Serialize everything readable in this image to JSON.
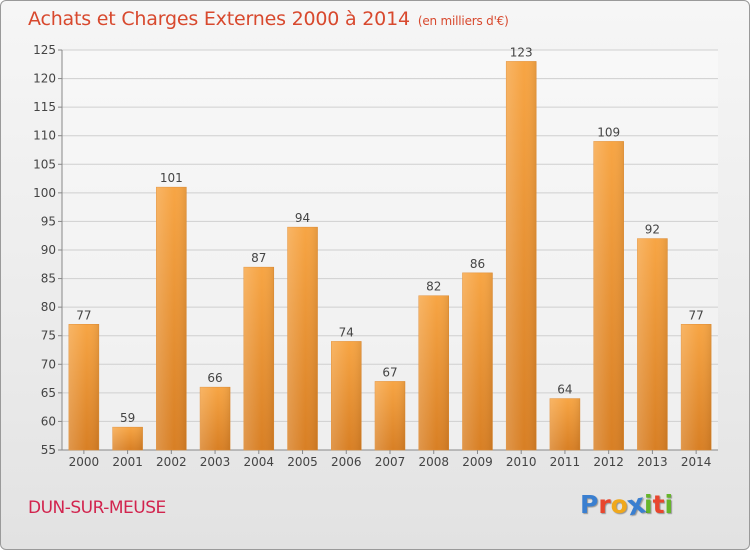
{
  "title": "Achats et Charges Externes 2000 à 2014",
  "title_unit": "(en milliers d'€)",
  "location": "DUN-SUR-MEUSE",
  "logo": {
    "text": "Proxiti",
    "letters": [
      "P",
      "r",
      "o",
      "x",
      "i",
      "t",
      "i"
    ],
    "colors": [
      "#3a7fd0",
      "#e8462e",
      "#f0a81c",
      "#3a7fd0",
      "#66b52b",
      "#e8462e",
      "#66b52b"
    ]
  },
  "colors": {
    "bar": "#f39a3a",
    "bar_dark": "#d87f24",
    "title": "#d8492e",
    "location": "#d2244e"
  },
  "chart_data": {
    "type": "bar",
    "categories": [
      "2000",
      "2001",
      "2002",
      "2003",
      "2004",
      "2005",
      "2006",
      "2007",
      "2008",
      "2009",
      "2010",
      "2011",
      "2012",
      "2013",
      "2014"
    ],
    "values": [
      77,
      59,
      101,
      66,
      87,
      94,
      74,
      67,
      82,
      86,
      123,
      64,
      109,
      92,
      77
    ],
    "ylim": [
      55,
      125
    ],
    "yticks": [
      55,
      60,
      65,
      70,
      75,
      80,
      85,
      90,
      95,
      100,
      105,
      110,
      115,
      120,
      125
    ],
    "grid": true,
    "title": "Achats et Charges Externes 2000 à 2014",
    "xlabel": "",
    "ylabel": ""
  }
}
